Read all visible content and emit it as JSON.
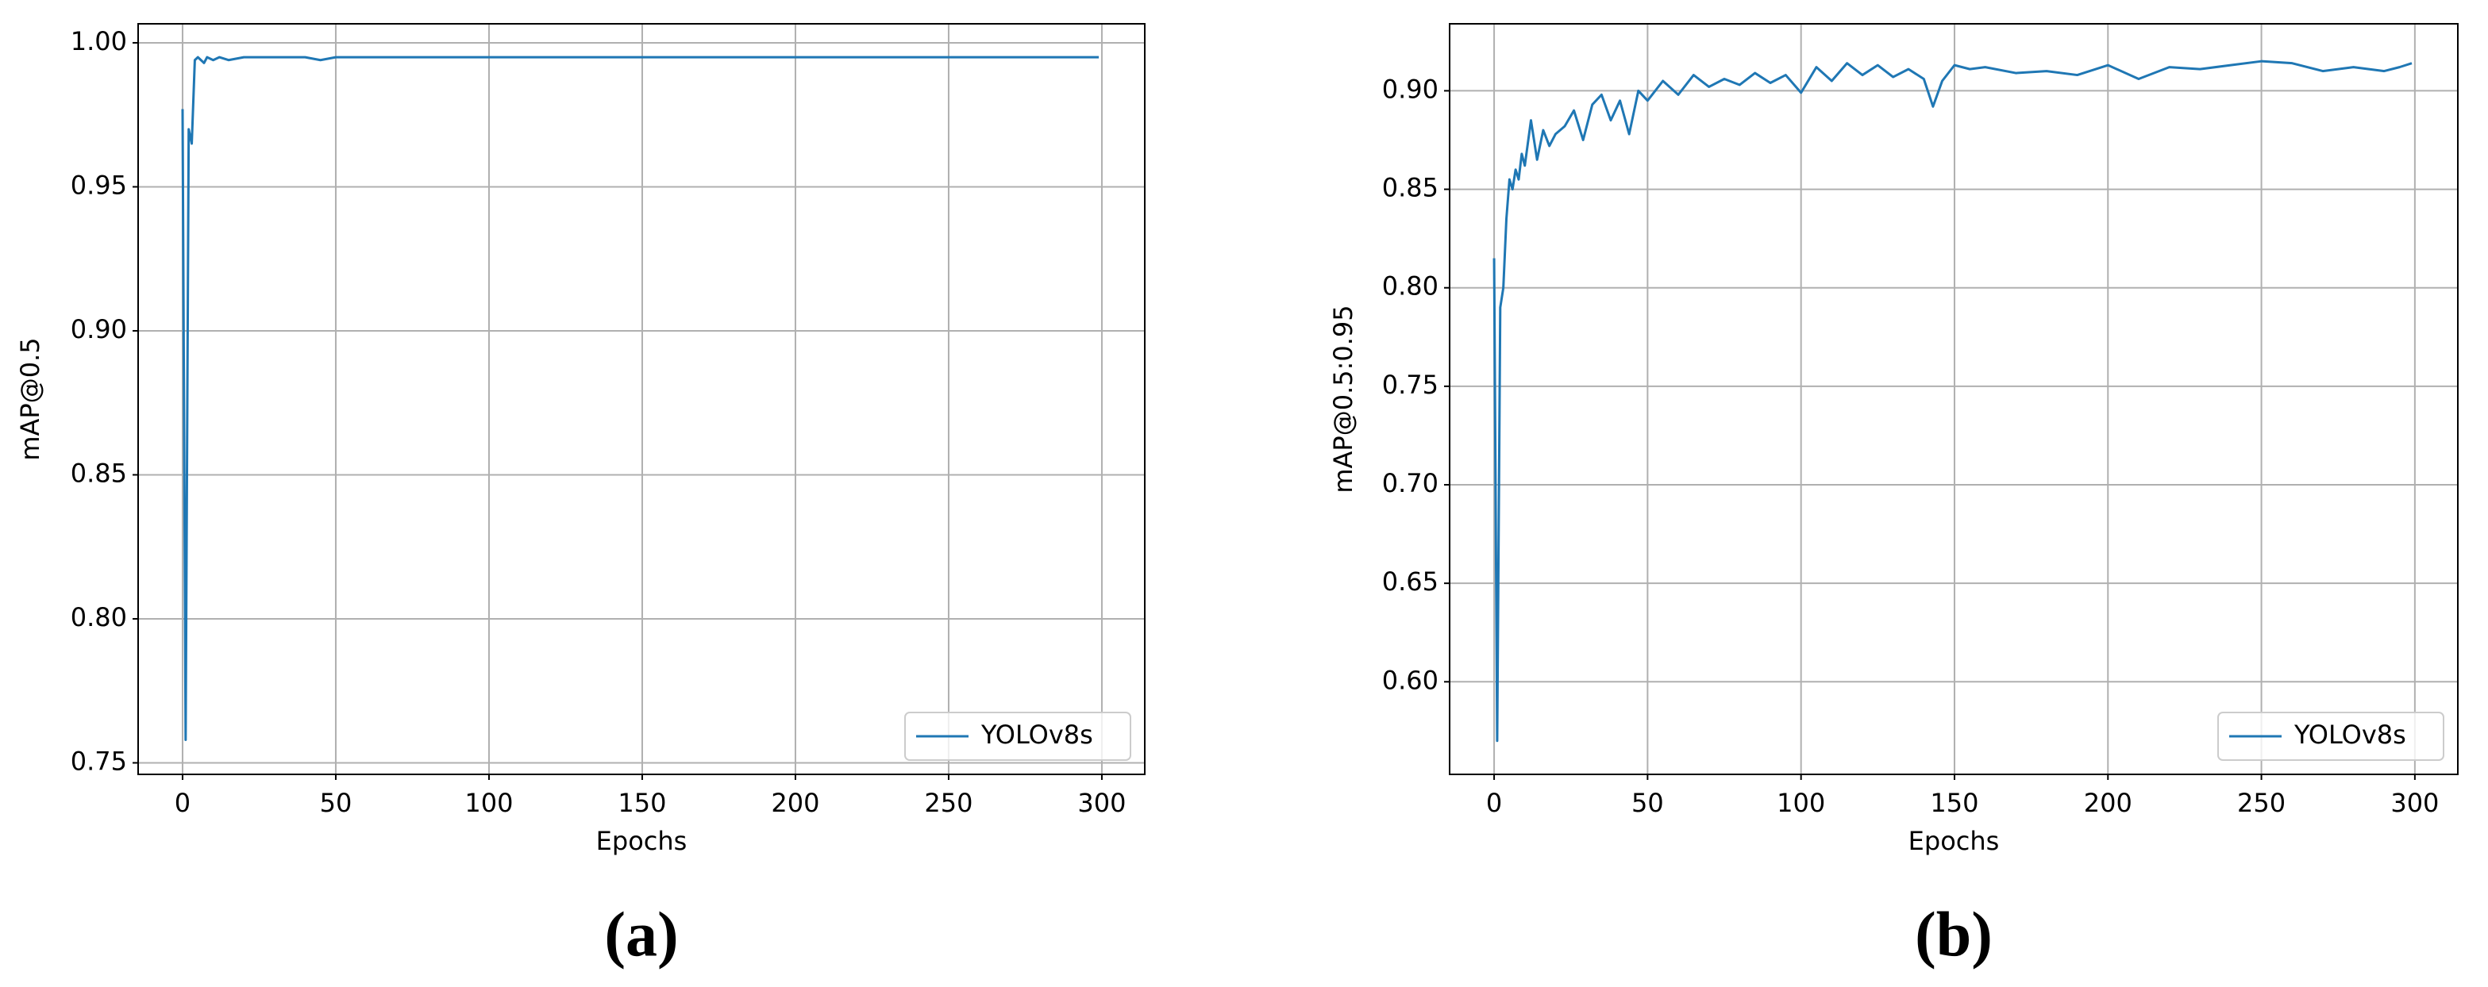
{
  "chart_data": [
    {
      "type": "line",
      "caption": "(a)",
      "xlabel": "Epochs",
      "ylabel": "mAP@0.5",
      "x": [
        0,
        1,
        2,
        3,
        4,
        5,
        6,
        7,
        8,
        10,
        12,
        15,
        20,
        30,
        40,
        45,
        50,
        60,
        80,
        100,
        130,
        150,
        180,
        200,
        230,
        250,
        280,
        299
      ],
      "series": [
        {
          "name": "YOLOv8s",
          "color": "#1f77b4",
          "values": [
            0.977,
            0.758,
            0.97,
            0.965,
            0.994,
            0.995,
            0.994,
            0.993,
            0.995,
            0.994,
            0.995,
            0.994,
            0.995,
            0.995,
            0.995,
            0.994,
            0.995,
            0.995,
            0.995,
            0.995,
            0.995,
            0.995,
            0.995,
            0.995,
            0.995,
            0.995,
            0.995,
            0.995
          ]
        }
      ],
      "xlim": [
        -14.5,
        314
      ],
      "ylim": [
        0.746,
        1.0066
      ],
      "xticks": [
        0,
        50,
        100,
        150,
        200,
        250,
        300
      ],
      "yticks": [
        0.75,
        {
          "value": 0.8,
          "label": "0.80"
        },
        0.85,
        {
          "value": 0.9,
          "label": "0.90"
        },
        0.95,
        {
          "value": 1.0,
          "label": "1.00"
        }
      ],
      "grid": true,
      "legend": "lower right"
    },
    {
      "type": "line",
      "caption": "(b)",
      "xlabel": "Epochs",
      "ylabel": "mAP@0.5:0.95",
      "x": [
        0,
        1,
        2,
        3,
        4,
        5,
        6,
        7,
        8,
        9,
        10,
        12,
        14,
        16,
        18,
        20,
        23,
        26,
        29,
        32,
        35,
        38,
        41,
        44,
        47,
        50,
        55,
        60,
        65,
        70,
        75,
        80,
        85,
        90,
        95,
        100,
        105,
        110,
        115,
        120,
        125,
        130,
        135,
        140,
        143,
        146,
        150,
        155,
        160,
        170,
        180,
        190,
        200,
        210,
        220,
        230,
        240,
        250,
        260,
        270,
        280,
        290,
        295,
        299
      ],
      "series": [
        {
          "name": "YOLOv8s",
          "color": "#1f77b4",
          "values": [
            0.815,
            0.57,
            0.79,
            0.8,
            0.835,
            0.855,
            0.85,
            0.86,
            0.855,
            0.868,
            0.862,
            0.885,
            0.865,
            0.88,
            0.872,
            0.878,
            0.882,
            0.89,
            0.875,
            0.893,
            0.898,
            0.885,
            0.895,
            0.878,
            0.9,
            0.895,
            0.905,
            0.898,
            0.908,
            0.902,
            0.906,
            0.903,
            0.909,
            0.904,
            0.908,
            0.899,
            0.912,
            0.905,
            0.914,
            0.908,
            0.913,
            0.907,
            0.911,
            0.906,
            0.892,
            0.905,
            0.913,
            0.911,
            0.912,
            0.909,
            0.91,
            0.908,
            0.913,
            0.906,
            0.912,
            0.911,
            0.913,
            0.915,
            0.914,
            0.91,
            0.912,
            0.91,
            0.912,
            0.914
          ]
        }
      ],
      "xlim": [
        -14.5,
        314
      ],
      "ylim": [
        0.553,
        0.934
      ],
      "xticks": [
        0,
        50,
        100,
        150,
        200,
        250,
        300
      ],
      "yticks": [
        {
          "value": 0.6,
          "label": "0.60"
        },
        0.65,
        {
          "value": 0.7,
          "label": "0.70"
        },
        0.75,
        {
          "value": 0.8,
          "label": "0.80"
        },
        0.85,
        {
          "value": 0.9,
          "label": "0.90"
        }
      ],
      "grid": true,
      "legend": "lower right"
    }
  ]
}
